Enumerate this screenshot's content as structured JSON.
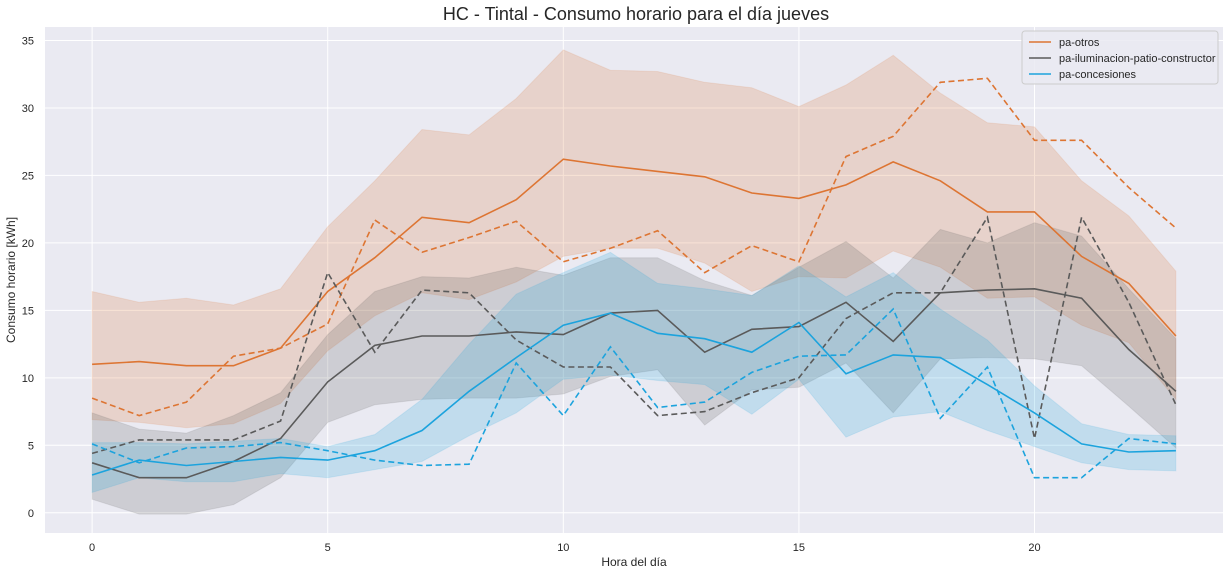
{
  "chart_data": {
    "type": "line",
    "title": "HC - Tintal - Consumo horario para el día jueves",
    "xlabel": "Hora del día",
    "ylabel": "Consumo horario [kWh]",
    "xlim": [
      -1,
      24
    ],
    "ylim": [
      -1.5,
      36
    ],
    "xticks": [
      0,
      5,
      10,
      15,
      20
    ],
    "yticks": [
      0,
      5,
      10,
      15,
      20,
      25,
      30,
      35
    ],
    "grid": true,
    "legend_position": "top-right",
    "x": [
      0,
      1,
      2,
      3,
      4,
      5,
      6,
      7,
      8,
      9,
      10,
      11,
      12,
      13,
      14,
      15,
      16,
      17,
      18,
      19,
      20,
      21,
      22,
      23
    ],
    "series": [
      {
        "name": "pa-otros",
        "color": "#dd7533",
        "mean": [
          11.0,
          11.2,
          10.9,
          10.9,
          12.2,
          16.4,
          18.9,
          21.9,
          21.5,
          23.2,
          26.2,
          25.7,
          25.3,
          24.9,
          23.7,
          23.3,
          24.3,
          26.0,
          24.6,
          22.3,
          22.3,
          19.0,
          17.0,
          13.1
        ],
        "upper": [
          16.4,
          15.6,
          15.9,
          15.4,
          16.6,
          21.2,
          24.6,
          28.4,
          28.0,
          30.7,
          34.3,
          32.8,
          32.7,
          31.9,
          31.5,
          30.1,
          31.7,
          33.9,
          31.1,
          28.9,
          28.6,
          24.6,
          22.0,
          17.9
        ],
        "lower": [
          6.9,
          6.7,
          6.3,
          6.6,
          8.1,
          12.0,
          14.6,
          16.3,
          15.8,
          17.1,
          19.0,
          19.6,
          19.6,
          18.5,
          16.4,
          17.5,
          17.4,
          19.4,
          18.2,
          15.9,
          16.0,
          13.9,
          12.6,
          8.4
        ],
        "dashed": [
          8.5,
          7.2,
          8.2,
          11.6,
          12.2,
          14.0,
          21.7,
          19.3,
          20.4,
          21.6,
          18.6,
          19.6,
          20.9,
          17.8,
          19.8,
          18.6,
          26.4,
          27.9,
          31.9,
          32.2,
          27.6,
          27.6,
          24.1,
          21.1
        ]
      },
      {
        "name": "pa-iluminacion-patio-constructor",
        "color": "#5a5a5a",
        "mean": [
          3.7,
          2.6,
          2.6,
          3.8,
          5.5,
          9.7,
          12.4,
          13.1,
          13.1,
          13.4,
          13.2,
          14.8,
          15.0,
          11.9,
          13.6,
          13.8,
          15.6,
          12.7,
          16.3,
          16.5,
          16.6,
          15.9,
          12.1,
          9.0
        ],
        "upper": [
          7.4,
          6.2,
          5.9,
          7.2,
          8.9,
          13.2,
          16.4,
          17.5,
          17.4,
          18.2,
          17.6,
          18.9,
          18.9,
          17.2,
          16.1,
          18.2,
          20.1,
          17.4,
          21.0,
          20.0,
          21.5,
          20.5,
          16.6,
          12.9
        ],
        "lower": [
          1.0,
          -0.1,
          -0.1,
          0.6,
          2.6,
          6.7,
          8.0,
          8.4,
          8.5,
          8.5,
          8.8,
          10.1,
          10.6,
          6.5,
          9.1,
          9.3,
          11.1,
          7.4,
          11.4,
          11.5,
          11.4,
          10.9,
          7.9,
          4.8
        ],
        "dashed": [
          4.4,
          5.4,
          5.4,
          5.4,
          6.8,
          17.8,
          11.9,
          16.5,
          16.3,
          12.8,
          10.8,
          10.8,
          7.2,
          7.5,
          8.9,
          10.0,
          14.4,
          16.3,
          16.3,
          21.9,
          5.5,
          21.9,
          15.6,
          8.0
        ]
      },
      {
        "name": "pa-concesiones",
        "color": "#1ca3dd",
        "mean": [
          2.8,
          3.9,
          3.5,
          3.8,
          4.1,
          3.9,
          4.6,
          6.1,
          9.0,
          11.5,
          13.9,
          14.8,
          13.3,
          12.9,
          11.9,
          14.1,
          10.3,
          11.7,
          11.5,
          9.5,
          7.4,
          5.1,
          4.5,
          4.6
        ],
        "upper": [
          5.2,
          5.2,
          5.1,
          5.3,
          5.5,
          4.9,
          5.8,
          8.4,
          12.5,
          16.2,
          17.8,
          19.3,
          17.0,
          16.6,
          16.1,
          18.3,
          16.0,
          17.8,
          15.1,
          12.8,
          9.4,
          6.6,
          5.8,
          5.7
        ],
        "lower": [
          1.5,
          2.6,
          2.3,
          2.3,
          2.9,
          2.6,
          3.2,
          3.8,
          5.7,
          7.4,
          9.9,
          10.2,
          9.8,
          9.5,
          7.3,
          9.9,
          5.6,
          7.1,
          7.5,
          6.1,
          4.9,
          3.7,
          3.2,
          3.1
        ],
        "dashed": [
          5.1,
          3.7,
          4.8,
          4.9,
          5.2,
          4.6,
          3.9,
          3.5,
          3.6,
          11.1,
          7.2,
          12.3,
          7.8,
          8.2,
          10.4,
          11.6,
          11.7,
          15.1,
          7.0,
          10.8,
          2.6,
          2.6,
          5.5,
          5.1
        ]
      }
    ]
  }
}
